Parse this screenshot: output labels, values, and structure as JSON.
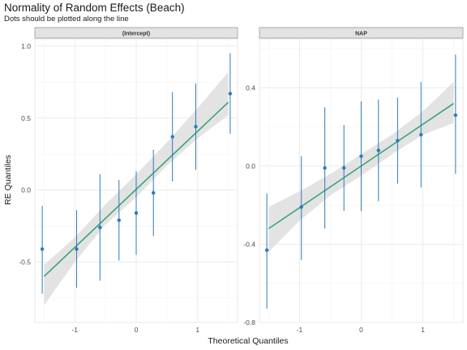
{
  "chart_data": {
    "type": "scatter",
    "title": "Normality of Random Effects (Beach)",
    "subtitle": "Dots should be plotted along the line",
    "xlabel": "Theoretical Quantiles",
    "ylabel": "RE Quantiles",
    "grid": true,
    "colors": {
      "points": "#2b7bba",
      "line": "#3aa374",
      "band": "#d9d9d9",
      "strip": "#e3e3e3",
      "grid": "#ebebeb"
    },
    "panels": [
      {
        "strip": "(Intercept)",
        "xlim": [
          -1.65,
          1.65
        ],
        "ylim": [
          -0.92,
          1.05
        ],
        "x_ticks": [
          -1,
          0,
          1
        ],
        "x_tick_labels": [
          "-1",
          "0",
          "1"
        ],
        "y_ticks": [
          -0.5,
          0.0,
          0.5,
          1.0
        ],
        "y_tick_labels": [
          "-0.5",
          "0.0",
          "0.5",
          "1.0"
        ],
        "fit_line": {
          "x": [
            -1.5,
            1.5
          ],
          "y": [
            -0.6,
            0.61
          ]
        },
        "confidence_band": {
          "x": [
            -1.5,
            -1.0,
            -0.5,
            0.0,
            0.5,
            1.0,
            1.5
          ],
          "lower": [
            -0.8,
            -0.5,
            -0.24,
            -0.05,
            0.17,
            0.36,
            0.52
          ],
          "upper": [
            -0.52,
            -0.33,
            -0.1,
            0.11,
            0.33,
            0.57,
            0.82
          ]
        },
        "points": [
          {
            "x": -1.53,
            "y": -0.41,
            "low": -0.72,
            "high": -0.11
          },
          {
            "x": -0.97,
            "y": -0.41,
            "low": -0.68,
            "high": -0.14
          },
          {
            "x": -0.59,
            "y": -0.26,
            "low": -0.63,
            "high": 0.11
          },
          {
            "x": -0.28,
            "y": -0.21,
            "low": -0.49,
            "high": 0.07
          },
          {
            "x": 0.0,
            "y": -0.16,
            "low": -0.45,
            "high": 0.13
          },
          {
            "x": 0.28,
            "y": -0.02,
            "low": -0.32,
            "high": 0.28
          },
          {
            "x": 0.59,
            "y": 0.37,
            "low": 0.06,
            "high": 0.68
          },
          {
            "x": 0.97,
            "y": 0.44,
            "low": 0.14,
            "high": 0.74
          },
          {
            "x": 1.53,
            "y": 0.67,
            "low": 0.39,
            "high": 0.95
          }
        ]
      },
      {
        "strip": "NAP",
        "xlim": [
          -1.65,
          1.65
        ],
        "ylim": [
          -0.8,
          0.65
        ],
        "x_ticks": [
          -1,
          0,
          1
        ],
        "x_tick_labels": [
          "-1",
          "0",
          "1"
        ],
        "y_ticks": [
          -0.8,
          -0.4,
          0.0,
          0.4
        ],
        "y_tick_labels": [
          "-0.8",
          "-0.4",
          "0.0",
          "0.4"
        ],
        "fit_line": {
          "x": [
            -1.5,
            1.5
          ],
          "y": [
            -0.32,
            0.32
          ]
        },
        "confidence_band": {
          "x": [
            -1.5,
            -1.0,
            -0.5,
            0.0,
            0.5,
            1.0,
            1.5
          ],
          "lower": [
            -0.44,
            -0.28,
            -0.15,
            -0.05,
            0.06,
            0.16,
            0.22
          ],
          "upper": [
            -0.21,
            -0.13,
            -0.04,
            0.06,
            0.16,
            0.28,
            0.43
          ]
        },
        "points": [
          {
            "x": -1.53,
            "y": -0.43,
            "low": -0.73,
            "high": -0.14
          },
          {
            "x": -0.97,
            "y": -0.21,
            "low": -0.48,
            "high": 0.05
          },
          {
            "x": -0.59,
            "y": -0.01,
            "low": -0.32,
            "high": 0.3
          },
          {
            "x": -0.28,
            "y": -0.01,
            "low": -0.23,
            "high": 0.21
          },
          {
            "x": 0.0,
            "y": 0.05,
            "low": -0.23,
            "high": 0.33
          },
          {
            "x": 0.28,
            "y": 0.08,
            "low": -0.18,
            "high": 0.34
          },
          {
            "x": 0.59,
            "y": 0.13,
            "low": -0.09,
            "high": 0.35
          },
          {
            "x": 0.97,
            "y": 0.16,
            "low": -0.11,
            "high": 0.43
          },
          {
            "x": 1.53,
            "y": 0.26,
            "low": -0.04,
            "high": 0.57
          }
        ]
      }
    ]
  }
}
